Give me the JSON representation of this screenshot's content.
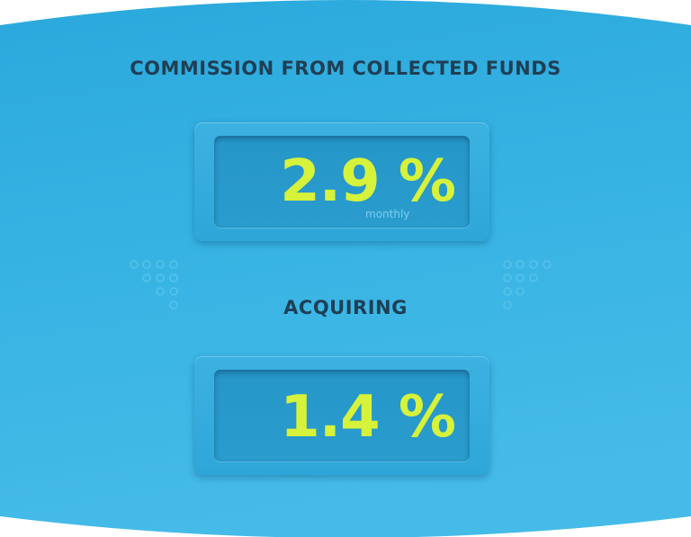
{
  "commission": {
    "title": "COMMISSION FROM COLLECTED FUNDS",
    "value": "2.9 %",
    "period": "monthly"
  },
  "acquiring": {
    "title": "ACQUIRING",
    "value": "1.4 %"
  },
  "colors": {
    "background": "#2eaee0",
    "value_text": "#d6f23a",
    "heading_text": "#1f3f55",
    "dot_pattern": "#56c2ea"
  },
  "icons": {
    "left_pattern": "dot-grid-icon",
    "right_pattern": "dot-grid-icon"
  }
}
